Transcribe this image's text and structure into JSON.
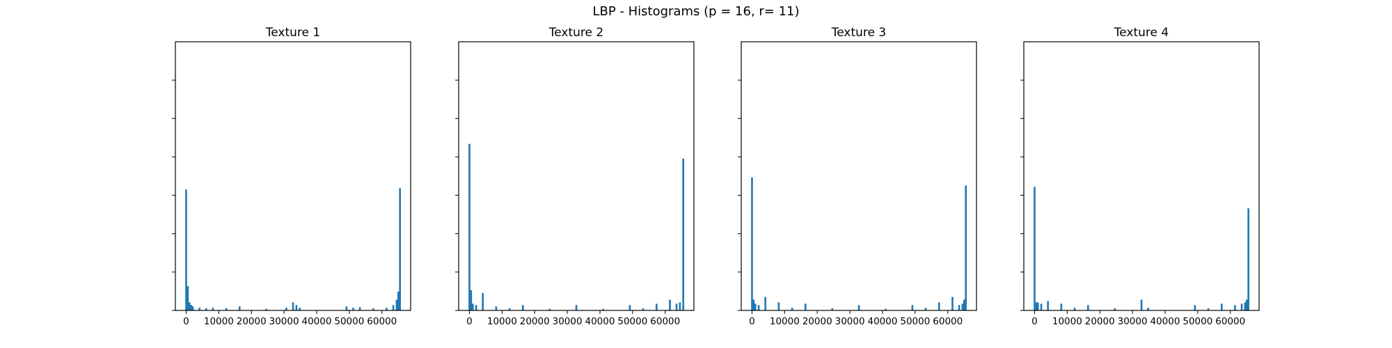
{
  "figure": {
    "suptitle": "LBP - Histograms (p = 16, r= 11)"
  },
  "colors": {
    "series": "#1f77b4",
    "axes": "#000000",
    "background": "#ffffff"
  },
  "chart_data": [
    {
      "type": "bar",
      "title": "Texture 1",
      "xlabel": "",
      "ylabel": "",
      "xlim": [
        -3300,
        68800
      ],
      "ylim": [
        0,
        1
      ],
      "xticks": [
        0,
        10000,
        20000,
        30000,
        40000,
        50000,
        60000
      ],
      "ytick_labels_shown": false,
      "grid": false,
      "x": [
        0,
        512,
        1024,
        1536,
        2048,
        4096,
        6144,
        8192,
        12288,
        16384,
        24576,
        30720,
        32768,
        33792,
        34816,
        49152,
        51200,
        53248,
        57344,
        61440,
        63488,
        64512,
        65024,
        65535
      ],
      "y": [
        0.45,
        0.09,
        0.03,
        0.02,
        0.015,
        0.01,
        0.008,
        0.01,
        0.008,
        0.015,
        0.006,
        0.01,
        0.03,
        0.02,
        0.01,
        0.015,
        0.01,
        0.012,
        0.008,
        0.01,
        0.02,
        0.04,
        0.07,
        0.455
      ]
    },
    {
      "type": "bar",
      "title": "Texture 2",
      "xlabel": "",
      "ylabel": "",
      "xlim": [
        -3300,
        68800
      ],
      "ylim": [
        0,
        1
      ],
      "xticks": [
        0,
        10000,
        20000,
        30000,
        40000,
        50000,
        60000
      ],
      "ytick_labels_shown": false,
      "grid": false,
      "x": [
        0,
        512,
        1024,
        2048,
        4096,
        8192,
        12288,
        16384,
        24576,
        32768,
        40960,
        49152,
        53248,
        57344,
        61440,
        63488,
        64512,
        65535
      ],
      "y": [
        0.62,
        0.075,
        0.025,
        0.02,
        0.065,
        0.015,
        0.008,
        0.02,
        0.006,
        0.02,
        0.006,
        0.02,
        0.008,
        0.025,
        0.04,
        0.025,
        0.03,
        0.565
      ]
    },
    {
      "type": "bar",
      "title": "Texture 3",
      "xlabel": "",
      "ylabel": "",
      "xlim": [
        -3300,
        68800
      ],
      "ylim": [
        0,
        1
      ],
      "xticks": [
        0,
        10000,
        20000,
        30000,
        40000,
        50000,
        60000
      ],
      "ytick_labels_shown": false,
      "grid": false,
      "x": [
        0,
        512,
        1024,
        2048,
        4096,
        8192,
        12288,
        16384,
        24576,
        32768,
        40960,
        49152,
        53248,
        57344,
        61440,
        63488,
        64512,
        65024,
        65535
      ],
      "y": [
        0.495,
        0.04,
        0.025,
        0.02,
        0.05,
        0.03,
        0.01,
        0.025,
        0.008,
        0.02,
        0.006,
        0.02,
        0.01,
        0.03,
        0.05,
        0.02,
        0.025,
        0.04,
        0.465
      ]
    },
    {
      "type": "bar",
      "title": "Texture 4",
      "xlabel": "",
      "ylabel": "",
      "xlim": [
        -3300,
        68800
      ],
      "ylim": [
        0,
        1
      ],
      "xticks": [
        0,
        10000,
        20000,
        30000,
        40000,
        50000,
        60000
      ],
      "ytick_labels_shown": false,
      "grid": false,
      "x": [
        0,
        512,
        1024,
        2048,
        4096,
        8192,
        12288,
        16384,
        24576,
        32768,
        34816,
        49152,
        53248,
        57344,
        61440,
        63488,
        64512,
        65024,
        65535
      ],
      "y": [
        0.46,
        0.03,
        0.03,
        0.025,
        0.035,
        0.025,
        0.01,
        0.02,
        0.008,
        0.04,
        0.01,
        0.02,
        0.008,
        0.025,
        0.02,
        0.025,
        0.03,
        0.04,
        0.38
      ]
    }
  ]
}
